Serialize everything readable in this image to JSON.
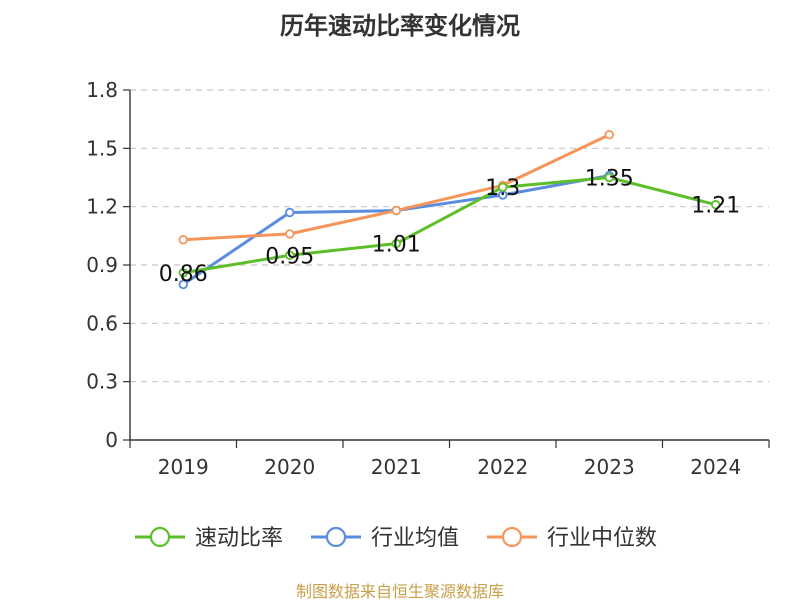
{
  "colors": {
    "series_0": "#5cbf2a",
    "series_1": "#5b8ddf",
    "series_2": "#f5955a",
    "grid": "#c8c8c8",
    "axis": "#333333",
    "source": "#c8a04a"
  },
  "chart_data": {
    "type": "line",
    "title": "历年速动比率变化情况",
    "xlabel": "",
    "ylabel": "",
    "categories": [
      "2019",
      "2020",
      "2021",
      "2022",
      "2023",
      "2024"
    ],
    "ylim": [
      0,
      1.8
    ],
    "yticks": [
      "0",
      "0.3",
      "0.6",
      "0.9",
      "1.2",
      "1.5",
      "1.8"
    ],
    "grid": true,
    "legend_position": "bottom",
    "series": [
      {
        "name": "速动比率",
        "values": [
          0.86,
          0.95,
          1.01,
          1.3,
          1.35,
          1.21
        ],
        "labels": [
          "0.86",
          "0.95",
          "1.01",
          "1.3",
          "1.35",
          "1.21"
        ]
      },
      {
        "name": "行业均值",
        "values": [
          0.8,
          1.17,
          1.18,
          1.26,
          1.36,
          null
        ]
      },
      {
        "name": "行业中位数",
        "values": [
          1.03,
          1.06,
          1.18,
          1.31,
          1.57,
          null
        ]
      }
    ]
  },
  "source": "制图数据来自恒生聚源数据库"
}
